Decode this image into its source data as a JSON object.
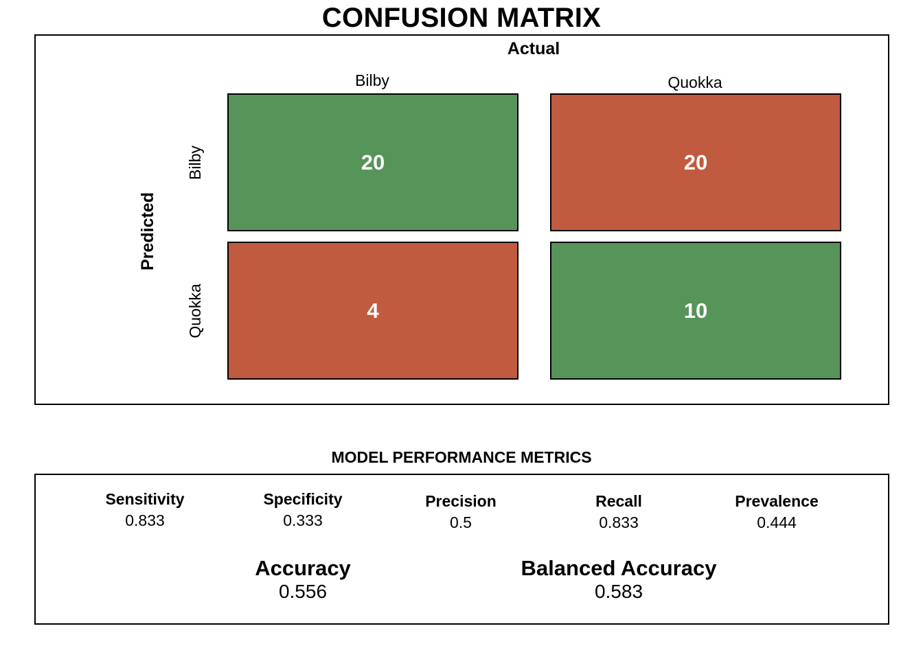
{
  "title": "CONFUSION MATRIX",
  "colors": {
    "correct": "#57945a",
    "incorrect": "#c05b3f",
    "border": "#000000"
  },
  "chart_data": {
    "type": "heatmap",
    "title": "CONFUSION MATRIX",
    "xlabel": "Actual",
    "ylabel": "Predicted",
    "actual_classes": [
      "Bilby",
      "Quokka"
    ],
    "predicted_classes": [
      "Bilby",
      "Quokka"
    ],
    "matrix": [
      [
        20,
        20
      ],
      [
        4,
        10
      ]
    ]
  },
  "metrics": {
    "title": "MODEL PERFORMANCE METRICS",
    "items": [
      {
        "name": "Sensitivity",
        "value": "0.833"
      },
      {
        "name": "Specificity",
        "value": "0.333"
      },
      {
        "name": "Precision",
        "value": "0.5"
      },
      {
        "name": "Recall",
        "value": "0.833"
      },
      {
        "name": "Prevalence",
        "value": "0.444"
      }
    ],
    "accuracy": {
      "name": "Accuracy",
      "value": "0.556"
    },
    "balanced_accuracy": {
      "name": "Balanced Accuracy",
      "value": "0.583"
    }
  }
}
